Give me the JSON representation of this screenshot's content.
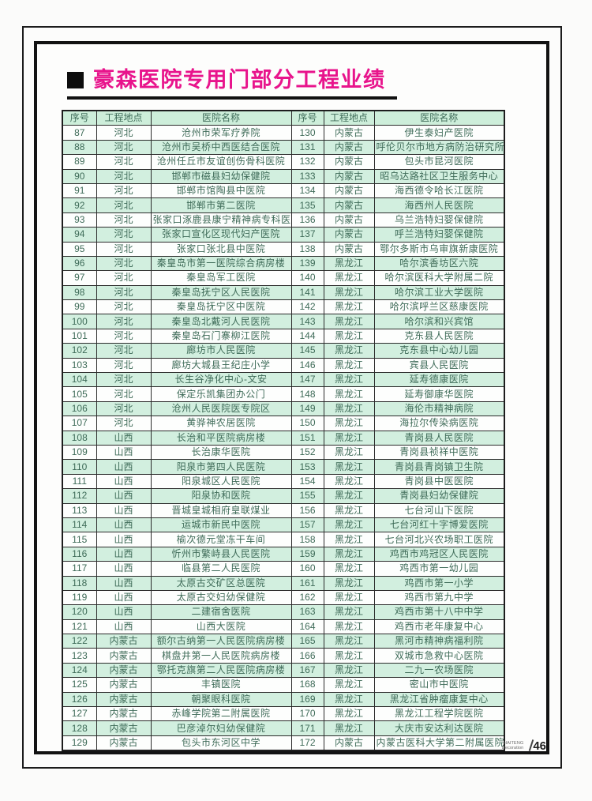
{
  "title": "豪森医院专用门部分工程业绩",
  "colors": {
    "title_magenta": "#e8148c",
    "row_green": "#d2efdf",
    "row_white": "#fdfefd",
    "table_text": "#3e6b58",
    "frame_black": "#121212"
  },
  "table": {
    "headers": [
      "序号",
      "工程地点",
      "医院名称",
      "序号",
      "工程地点",
      "医院名称"
    ],
    "rows": [
      [
        "87",
        "河北",
        "沧州市荣军疗养院",
        "130",
        "内蒙古",
        "伊生泰妇产医院"
      ],
      [
        "88",
        "河北",
        "沧州市吴桥中西医结合医院",
        "131",
        "内蒙古",
        "呼伦贝尔市地方病防治研究所"
      ],
      [
        "89",
        "河北",
        "沧州任丘市友谊创伤骨科医院",
        "132",
        "内蒙古",
        "包头市昆河医院"
      ],
      [
        "90",
        "河北",
        "邯郸市磁县妇幼保健院",
        "133",
        "内蒙古",
        "昭乌达路社区卫生服务中心"
      ],
      [
        "91",
        "河北",
        "邯郸市馆陶县中医院",
        "134",
        "内蒙古",
        "海西德令哈长江医院"
      ],
      [
        "92",
        "河北",
        "邯郸市第二医院",
        "135",
        "内蒙古",
        "海西州人民医院"
      ],
      [
        "93",
        "河北",
        "张家口涿鹿县康宁精神病专科医院",
        "136",
        "内蒙古",
        "乌兰浩特妇婴保健院"
      ],
      [
        "94",
        "河北",
        "张家口宣化区现代妇产医院",
        "137",
        "内蒙古",
        "呼兰浩特妇婴保健院"
      ],
      [
        "95",
        "河北",
        "张家口张北县中医院",
        "138",
        "内蒙古",
        "鄂尔多斯市乌审旗新康医院"
      ],
      [
        "96",
        "河北",
        "秦皇岛市第一医院综合病房楼",
        "139",
        "黑龙江",
        "哈尔滨香坊区六院"
      ],
      [
        "97",
        "河北",
        "秦皇岛军工医院",
        "140",
        "黑龙江",
        "哈尔滨医科大学附属二院"
      ],
      [
        "98",
        "河北",
        "秦皇岛抚宁区人民医院",
        "141",
        "黑龙江",
        "哈尔滨工业大学医院"
      ],
      [
        "99",
        "河北",
        "秦皇岛抚宁区中医院",
        "142",
        "黑龙江",
        "哈尔滨呼兰区慈康医院"
      ],
      [
        "100",
        "河北",
        "秦皇岛北戴河人民医院",
        "143",
        "黑龙江",
        "哈尔滨和兴宾馆"
      ],
      [
        "101",
        "河北",
        "秦皇岛石门寨柳江医院",
        "144",
        "黑龙江",
        "克东县人民医院"
      ],
      [
        "102",
        "河北",
        "廊坊市人民医院",
        "145",
        "黑龙江",
        "克东县中心幼儿园"
      ],
      [
        "103",
        "河北",
        "廊坊大城县王纪庄小学",
        "146",
        "黑龙江",
        "宾县人民医院"
      ],
      [
        "104",
        "河北",
        "长生谷净化中心-文安",
        "147",
        "黑龙江",
        "延寿德康医院"
      ],
      [
        "105",
        "河北",
        "保定乐凯集团办公门",
        "148",
        "黑龙江",
        "延寿御康华医院"
      ],
      [
        "106",
        "河北",
        "沧州人民医院医专院区",
        "149",
        "黑龙江",
        "海伦市精神病院"
      ],
      [
        "107",
        "河北",
        "黄骅神农居医院",
        "150",
        "黑龙江",
        "海拉尔传染病医院"
      ],
      [
        "108",
        "山西",
        "长治和平医院病房楼",
        "151",
        "黑龙江",
        "青岗县人民医院"
      ],
      [
        "109",
        "山西",
        "长治康华医院",
        "152",
        "黑龙江",
        "青岗县祯祥中医院"
      ],
      [
        "110",
        "山西",
        "阳泉市第四人民医院",
        "153",
        "黑龙江",
        "青岗县青岗镇卫生院"
      ],
      [
        "111",
        "山西",
        "阳泉城区人民医院",
        "154",
        "黑龙江",
        "青岗县中医医院"
      ],
      [
        "112",
        "山西",
        "阳泉协和医院",
        "155",
        "黑龙江",
        "青岗县妇幼保健院"
      ],
      [
        "113",
        "山西",
        "晋城皇城相府皇联煤业",
        "156",
        "黑龙江",
        "七台河山下医院"
      ],
      [
        "114",
        "山西",
        "运城市新民中医院",
        "157",
        "黑龙江",
        "七台河红十字博爱医院"
      ],
      [
        "115",
        "山西",
        "榆次德元堂冻干车间",
        "158",
        "黑龙江",
        "七台河北兴农场职工医院"
      ],
      [
        "116",
        "山西",
        "忻州市繁峙县人民医院",
        "159",
        "黑龙江",
        "鸡西市鸡冠区人民医院"
      ],
      [
        "117",
        "山西",
        "临县第二人民医院",
        "160",
        "黑龙江",
        "鸡西市第一幼儿园"
      ],
      [
        "118",
        "山西",
        "太原古交矿区总医院",
        "161",
        "黑龙江",
        "鸡西市第一小学"
      ],
      [
        "119",
        "山西",
        "太原古交妇幼保健院",
        "162",
        "黑龙江",
        "鸡西市第九中学"
      ],
      [
        "120",
        "山西",
        "二建宿舍医院",
        "163",
        "黑龙江",
        "鸡西市第十八中中学"
      ],
      [
        "121",
        "山西",
        "山西大医院",
        "164",
        "黑龙江",
        "鸡西市老年康复中心"
      ],
      [
        "122",
        "内蒙古",
        "额尔古纳第一人民医院病房楼",
        "165",
        "黑龙江",
        "黑河市精神病福利院"
      ],
      [
        "123",
        "内蒙古",
        "棋盘井第一人民医院病房楼",
        "166",
        "黑龙江",
        "双城市急救中心医院"
      ],
      [
        "124",
        "内蒙古",
        "鄂托克旗第二人民医院病房楼",
        "167",
        "黑龙江",
        "二九一农场医院"
      ],
      [
        "125",
        "内蒙古",
        "丰镇医院",
        "168",
        "黑龙江",
        "密山市中医院"
      ],
      [
        "126",
        "内蒙古",
        "朝聚眼科医院",
        "169",
        "黑龙江",
        "黑龙江省肿瘤康复中心"
      ],
      [
        "127",
        "内蒙古",
        "赤峰学院第二附属医院",
        "170",
        "黑龙江",
        "黑龙江工程学院医院"
      ],
      [
        "128",
        "内蒙古",
        "巴彦淖尔妇幼保健院",
        "171",
        "黑龙江",
        "大庆市安达利达医院"
      ],
      [
        "129",
        "内蒙古",
        "包头市东河区中学",
        "172",
        "内蒙古",
        "内蒙古医科大学第二附属医院"
      ]
    ]
  },
  "footer": {
    "brand_line1": "HAITENG",
    "brand_line2": "Decoration",
    "page_number": "46"
  }
}
